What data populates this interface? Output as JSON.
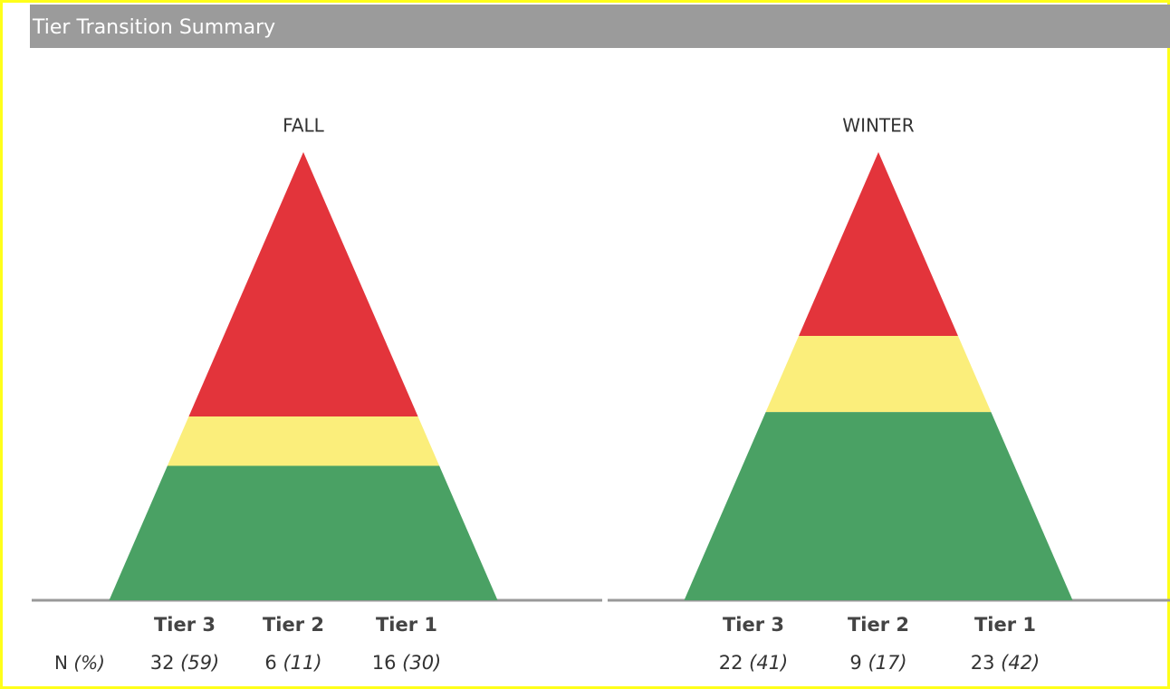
{
  "header": {
    "title": "Tier Transition Summary"
  },
  "row_label": "N (%)",
  "chart_data": [
    {
      "type": "pyramid",
      "title": "FALL",
      "categories": [
        "Tier 3",
        "Tier 2",
        "Tier 1"
      ],
      "values": [
        32,
        6,
        16
      ],
      "percents": [
        59,
        11,
        30
      ],
      "value_labels": [
        "32 (59)",
        "6 (11)",
        "16 (30)"
      ],
      "colors": [
        "#e3343b",
        "#fbee7b",
        "#4aa164"
      ]
    },
    {
      "type": "pyramid",
      "title": "WINTER",
      "categories": [
        "Tier 3",
        "Tier 2",
        "Tier 1"
      ],
      "values": [
        22,
        9,
        23
      ],
      "percents": [
        41,
        17,
        42
      ],
      "value_labels": [
        "22 (41)",
        "9 (17)",
        "23 (42)"
      ],
      "colors": [
        "#e3343b",
        "#fbee7b",
        "#4aa164"
      ]
    }
  ]
}
